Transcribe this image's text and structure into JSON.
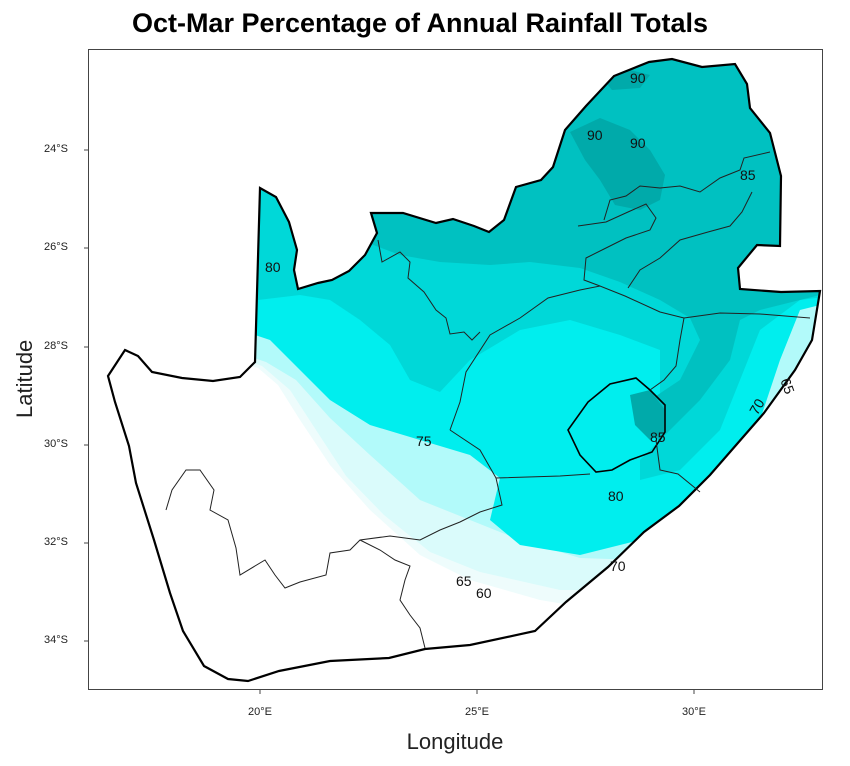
{
  "title": "Oct-Mar Percentage of Annual Rainfall Totals",
  "axes": {
    "xlabel": "Longitude",
    "ylabel": "Latitude",
    "x_ticks": [
      "20°E",
      "25°E",
      "30°E"
    ],
    "y_ticks": [
      "24°S",
      "26°S",
      "28°S",
      "30°S",
      "32°S",
      "34°S"
    ]
  },
  "contour_labels": [
    "90",
    "90",
    "90",
    "85",
    "80",
    "75",
    "85",
    "80",
    "70",
    "70",
    "65",
    "65",
    "60"
  ],
  "colors": {
    "band_lt60": "#ffffff",
    "band_60_65": "#eefcfc",
    "band_65_70": "#dafbfb",
    "band_70_75": "#b2fafa",
    "band_75_80": "#00eeee",
    "band_80_85": "#00d8d8",
    "band_85_90": "#00c1c1",
    "band_gt90": "#00aaaa"
  }
}
